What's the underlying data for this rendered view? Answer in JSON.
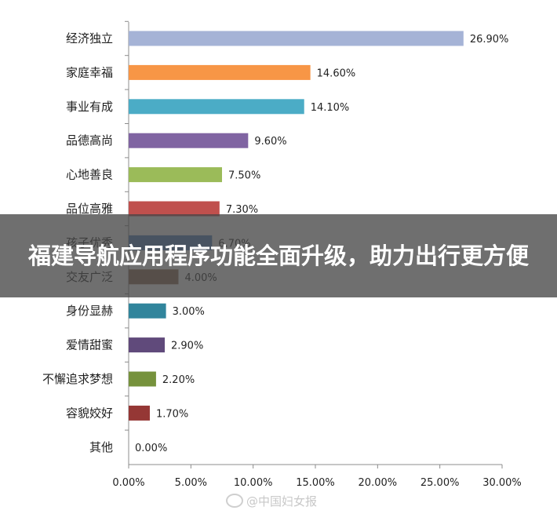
{
  "banner": {
    "title": "福建导航应用程序功能全面升级，助力出行更方便"
  },
  "watermark": {
    "text": "@中国妇女报",
    "icon": "weibo-icon"
  },
  "chart_data": {
    "type": "bar",
    "orientation": "horizontal",
    "categories": [
      "经济独立",
      "家庭幸福",
      "事业有成",
      "品德高尚",
      "心地善良",
      "品位高雅",
      "孩子优秀",
      "交友广泛",
      "身份显赫",
      "爱情甜蜜",
      "不懈追求梦想",
      "容貌姣好",
      "其他"
    ],
    "values": [
      26.9,
      14.6,
      14.1,
      9.6,
      7.5,
      7.3,
      6.7,
      4.0,
      3.0,
      2.9,
      2.2,
      1.7,
      0.0
    ],
    "value_labels": [
      "26.90%",
      "14.60%",
      "14.10%",
      "9.60%",
      "7.50%",
      "7.30%",
      "6.70%",
      "4.00%",
      "3.00%",
      "2.90%",
      "2.20%",
      "1.70%",
      "0.00%"
    ],
    "colors": [
      "#A5B3D6",
      "#F79646",
      "#4BACC6",
      "#8064A2",
      "#9BBB59",
      "#C0504D",
      "#4F81BD",
      "#8C6A52",
      "#31859C",
      "#604A7B",
      "#76923C",
      "#953735",
      "#A5B3D6"
    ],
    "xlim": [
      0,
      30
    ],
    "xticks": [
      0,
      5,
      10,
      15,
      20,
      25,
      30
    ],
    "xtick_labels": [
      "0.00%",
      "5.00%",
      "10.00%",
      "15.00%",
      "20.00%",
      "25.00%",
      "30.00%"
    ],
    "title": "",
    "xlabel": "",
    "ylabel": "",
    "grid": false,
    "legend": "none"
  }
}
